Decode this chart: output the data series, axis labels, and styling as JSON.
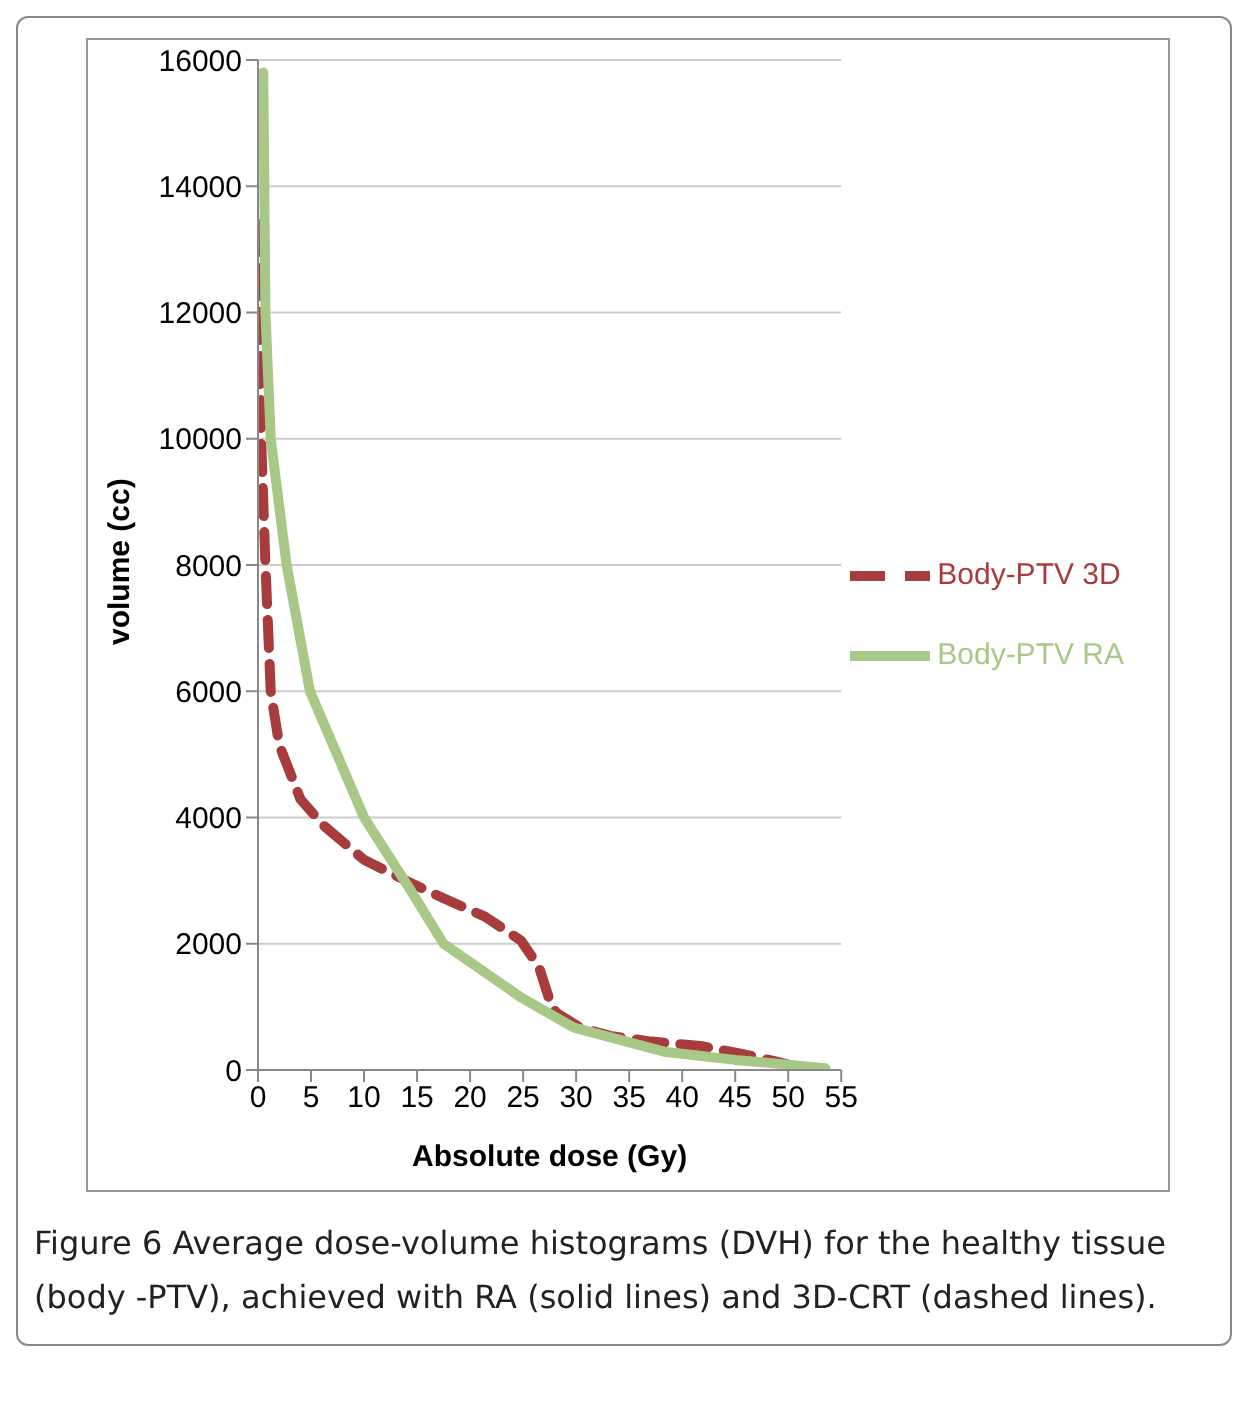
{
  "chart_data": {
    "type": "line",
    "xlabel": "Absolute dose (Gy)",
    "ylabel": "volume (cc)",
    "xlim": [
      0,
      55
    ],
    "xticks": [
      0,
      5,
      10,
      15,
      20,
      25,
      30,
      35,
      40,
      45,
      50,
      55
    ],
    "ylim": [
      0,
      16000
    ],
    "yticks": [
      0,
      2000,
      4000,
      6000,
      8000,
      10000,
      12000,
      14000,
      16000
    ],
    "grid": "y",
    "legend": "right",
    "marker": "none",
    "series": [
      {
        "name": "Body-PTV 3D",
        "color": "#a83c3c",
        "line_style": "dashed",
        "x": [
          0,
          0.3,
          0.7,
          1.2,
          2,
          4,
          6.2,
          10,
          14.2,
          17.5,
          21.4,
          24.8,
          26.5,
          27.7,
          28.2,
          30.4,
          33.2,
          37.1,
          41.7,
          45.5,
          49,
          50.6
        ],
        "values": [
          13400,
          10000,
          8000,
          6000,
          5150,
          4290,
          3870,
          3330,
          2980,
          2720,
          2430,
          2050,
          1630,
          1000,
          900,
          670,
          540,
          450,
          380,
          260,
          130,
          60
        ]
      },
      {
        "name": "Body-PTV RA",
        "color": "#a8c888",
        "line_style": "solid",
        "x": [
          0.5,
          0.7,
          1.2,
          2.7,
          4.9,
          10,
          14.2,
          17.5,
          24.8,
          29.8,
          38.3,
          45,
          53.5
        ],
        "values": [
          15800,
          12000,
          10000,
          8000,
          6000,
          4000,
          2900,
          2000,
          1150,
          670,
          290,
          160,
          30
        ]
      }
    ],
    "annotations": [
      "Figure 6 Average dose-volume histograms (DVH) for the healthy tissue (body -PTV), achieved with RA (solid lines) and 3D-CRT (dashed lines)."
    ]
  }
}
